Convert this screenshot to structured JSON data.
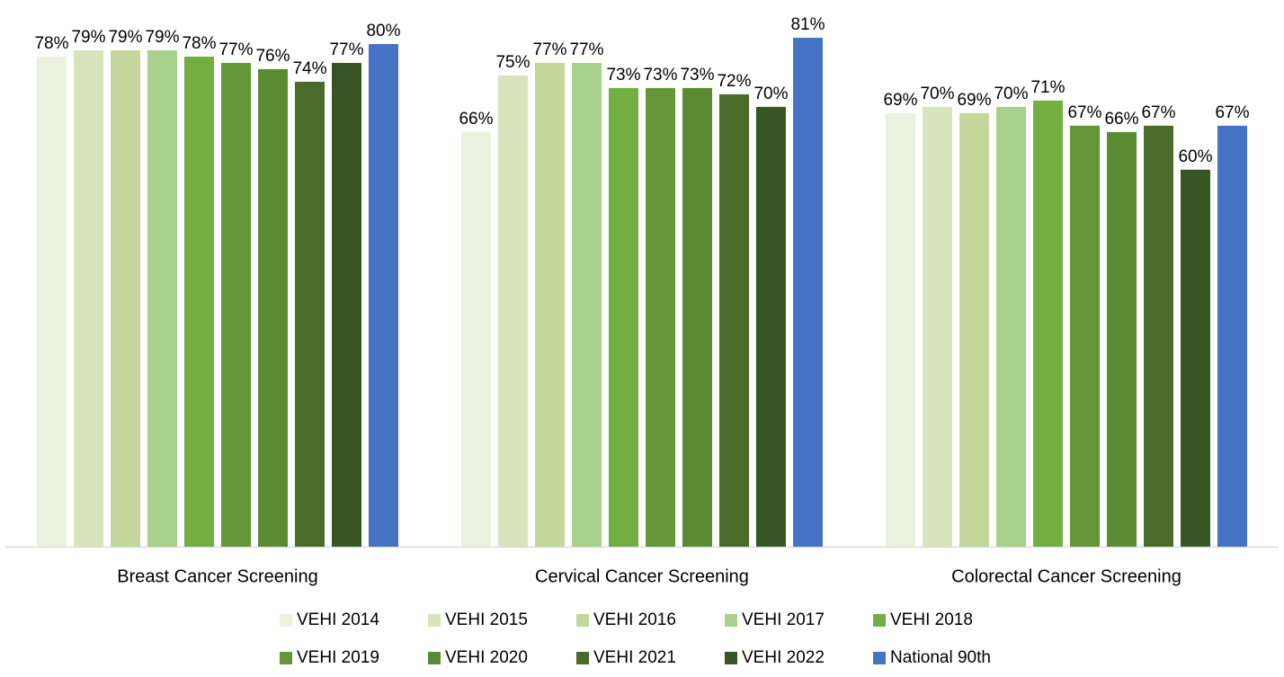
{
  "chart_data": {
    "type": "bar",
    "categories": [
      "Breast Cancer Screening",
      "Cervical Cancer Screening",
      "Colorectal Cancer Screening"
    ],
    "ylim": [
      0,
      80
    ],
    "series": [
      {
        "name": "VEHI 2014",
        "color": "#ebf1de",
        "values": [
          78,
          66,
          69
        ],
        "value_labels": [
          "78%",
          "66%",
          "69%"
        ]
      },
      {
        "name": "VEHI 2015",
        "color": "#d8e4bc",
        "values": [
          79,
          75,
          70
        ],
        "value_labels": [
          "79%",
          "75%",
          "70%"
        ]
      },
      {
        "name": "VEHI 2016",
        "color": "#c4d79b",
        "values": [
          79,
          77,
          69
        ],
        "value_labels": [
          "79%",
          "77%",
          "69%"
        ]
      },
      {
        "name": "VEHI 2017",
        "color": "#a9d18e",
        "values": [
          79,
          77,
          70
        ],
        "value_labels": [
          "79%",
          "77%",
          "70%"
        ]
      },
      {
        "name": "VEHI 2018",
        "color": "#72ae41",
        "values": [
          78,
          73,
          71
        ],
        "value_labels": [
          "78%",
          "73%",
          "71%"
        ]
      },
      {
        "name": "VEHI 2019",
        "color": "#659637",
        "values": [
          77,
          73,
          67
        ],
        "value_labels": [
          "77%",
          "73%",
          "67%"
        ]
      },
      {
        "name": "VEHI 2020",
        "color": "#5a8a32",
        "values": [
          76,
          73,
          66
        ],
        "value_labels": [
          "76%",
          "73%",
          "66%"
        ]
      },
      {
        "name": "VEHI 2021",
        "color": "#4a6b2a",
        "values": [
          74,
          72,
          67
        ],
        "value_labels": [
          "74%",
          "72%",
          "67%"
        ]
      },
      {
        "name": "VEHI 2022",
        "color": "#375623",
        "values": [
          77,
          70,
          60
        ],
        "value_labels": [
          "77%",
          "70%",
          "60%"
        ]
      },
      {
        "name": "National 90th",
        "color": "#4472c4",
        "values": [
          80,
          81,
          67
        ],
        "value_labels": [
          "80%",
          "81%",
          "67%"
        ]
      }
    ]
  }
}
